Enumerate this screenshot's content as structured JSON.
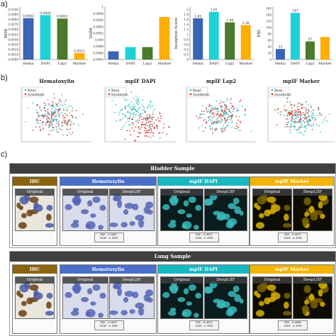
{
  "panel_labels": {
    "a": "a)",
    "b": "b)",
    "c": "c)"
  },
  "chart_data": [
    {
      "type": "bar",
      "ylabel": "MSE",
      "categories": [
        "Hema",
        "DAPI",
        "Lap2",
        "Marker"
      ],
      "values": [
        0.0083,
        0.0089,
        0.0082,
        0.0013
      ],
      "value_labels": [
        "0.0083",
        "0.0089",
        "0.0082",
        "0.0013"
      ],
      "yticks": [
        "0.0000",
        "0.0010",
        "0.0020",
        "0.0030",
        "0.0040",
        "0.0050",
        "0.0060",
        "0.0070",
        "0.0080",
        "0.0090",
        "0.0100"
      ],
      "ylim": [
        0,
        0.0105
      ],
      "colors": [
        "#3a64b4",
        "#20d0d8",
        "#4a7a2a",
        "#ffae00"
      ]
    },
    {
      "type": "bar",
      "ylabel": "SSIM",
      "categories": [
        "Hema",
        "DAPI",
        "Lap2",
        "Marker"
      ],
      "values": [
        0.99865,
        0.99878,
        0.99878,
        0.9997
      ],
      "yticks": [
        "1",
        "0.9998",
        "0.9996",
        "0.9994",
        "0.9992",
        "0.999",
        "0.9988",
        "0.9986",
        "0.9984"
      ],
      "ytick_values": [
        1.0,
        0.9998,
        0.9996,
        0.9994,
        0.9992,
        0.999,
        0.9988,
        0.9986,
        0.9984
      ],
      "ylim": [
        0.9984,
        1.0
      ],
      "colors": [
        "#3a64b4",
        "#20d0d8",
        "#4a7a2a",
        "#ffae00"
      ]
    },
    {
      "type": "bar",
      "ylabel": "Inception Score",
      "categories": [
        "Hema",
        "DAPI",
        "Lap2",
        "Marker"
      ],
      "values": [
        1.65,
        1.91,
        1.49,
        1.38
      ],
      "value_labels": [
        "1.65",
        "1.91",
        "1.49",
        "1.38"
      ],
      "yticks": [
        "0",
        "0.2",
        "0.4",
        "0.6",
        "0.8",
        "1",
        "1.2",
        "1.4",
        "1.6",
        "1.8",
        "2"
      ],
      "ylim": [
        0,
        2.1
      ],
      "colors": [
        "#3a64b4",
        "#20d0d8",
        "#4a7a2a",
        "#ffae00"
      ]
    },
    {
      "type": "bar",
      "ylabel": "FID",
      "categories": [
        "Hema",
        "DAPI",
        "Lap2",
        "Marker"
      ],
      "values": [
        33,
        147,
        57,
        71
      ],
      "value_labels": [
        "33",
        "147",
        "57",
        ""
      ],
      "yticks": [
        "0",
        "20",
        "40",
        "60",
        "80",
        "100",
        "120",
        "140",
        "160"
      ],
      "ylim": [
        0,
        165
      ],
      "colors": [
        "#3a64b4",
        "#20d0d8",
        "#4a7a2a",
        "#ffae00"
      ]
    },
    {
      "type": "scatter",
      "title": "Hematoxylin",
      "legend": [
        "Real",
        "Synthetic"
      ],
      "colors": [
        "#3fc6c9",
        "#d1453b"
      ]
    },
    {
      "type": "scatter",
      "title": "mpIF DAPI",
      "legend": [
        "Real",
        "Synthetic"
      ],
      "colors": [
        "#3fc6c9",
        "#d1453b"
      ]
    },
    {
      "type": "scatter",
      "title": "mpIF Lap2",
      "legend": [
        "Real",
        "Synthetic"
      ],
      "colors": [
        "#3fc6c9",
        "#d1453b"
      ]
    },
    {
      "type": "scatter",
      "title": "mpIF Marker",
      "legend": [
        "Real",
        "Synthetic"
      ],
      "colors": [
        "#3fc6c9",
        "#d1453b"
      ]
    }
  ],
  "samples": [
    {
      "title": "Bladder Sample",
      "ihc_label": "IHC",
      "hema_label": "Hematoxylin",
      "dapi_label": "mpIF DAPI",
      "marker_label": "mpIF Marker",
      "original": "Original",
      "deepliif": "DeepLIIF",
      "hema_metrics": [
        "MSE: 0.0067",
        "SSIM: 0.9995"
      ],
      "dapi_metrics": [
        "MSE: 0.0052",
        "SSIM: 0.9995"
      ],
      "marker_metrics": [
        "MSE: 0.0013",
        "SSIM: 0.9998"
      ]
    },
    {
      "title": "Lung Sample",
      "ihc_label": "IHC",
      "hema_label": "Hematoxylin",
      "dapi_label": "mpIF DAPI",
      "marker_label": "mpIF Marker",
      "original": "Original",
      "deepliif": "DeepLIIF",
      "hema_metrics": [
        "MSE: 0.0025",
        "SSIM: 0.9995"
      ],
      "dapi_metrics": [
        "MSE: 0.0033",
        "SSIM: 0.9994"
      ],
      "marker_metrics": [
        "MSE: 0.0008",
        "SSIM: 0.9999"
      ]
    }
  ],
  "colors": {
    "ihc": "#8a6410",
    "hematoxylin": "#4a6fc8",
    "dapi": "#18b8c0",
    "marker": "#f2b400",
    "dark_header": "#3f3f3f"
  }
}
